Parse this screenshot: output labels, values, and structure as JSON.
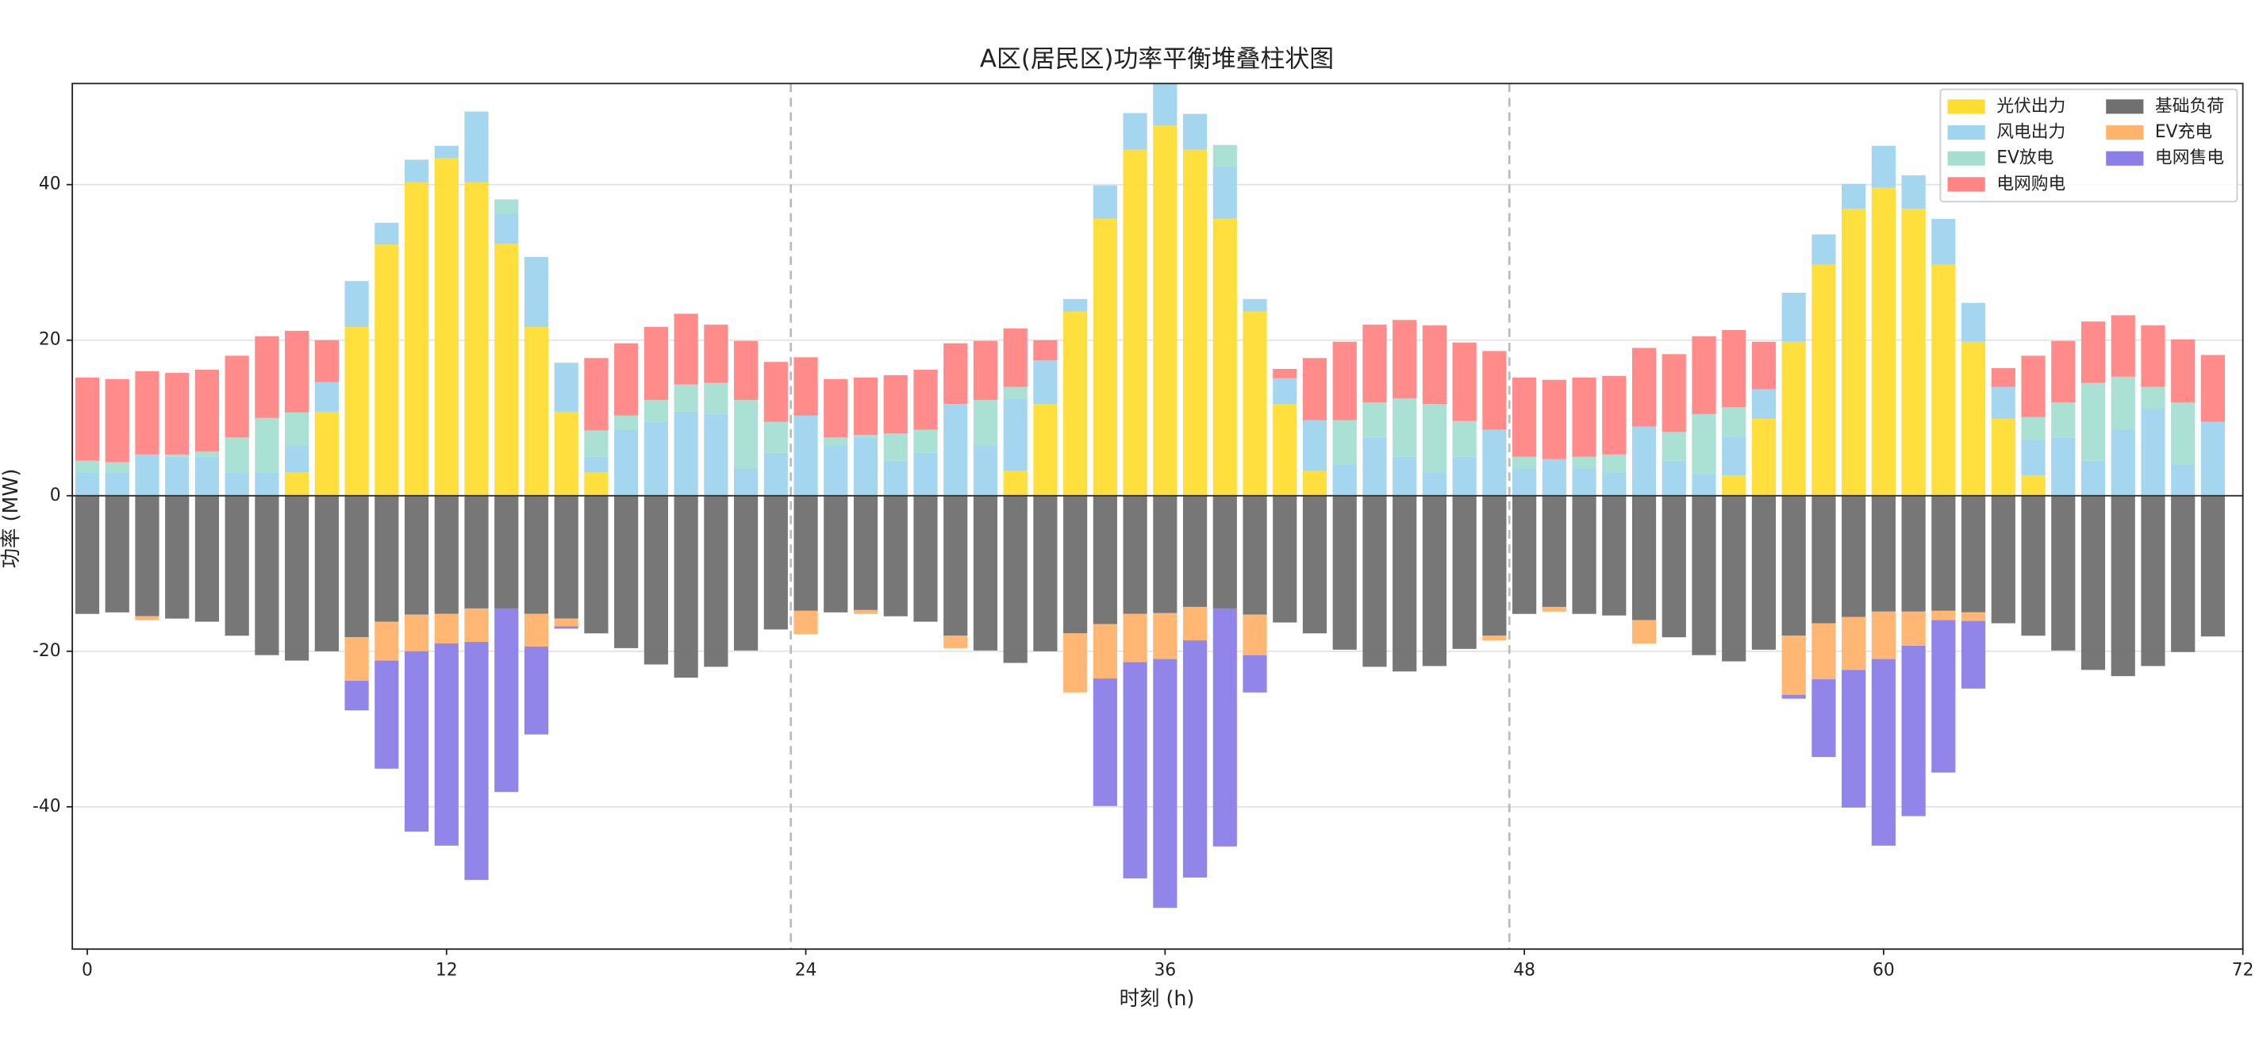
{
  "chart_data": {
    "type": "stacked_bar",
    "title": "A区(居民区)功率平衡堆叠柱状图",
    "x_label": "时刻 (h)",
    "y_label": "功率 (MW)",
    "x": [
      0,
      1,
      2,
      3,
      4,
      5,
      6,
      7,
      8,
      9,
      10,
      11,
      12,
      13,
      14,
      15,
      16,
      17,
      18,
      19,
      20,
      21,
      22,
      23,
      24,
      25,
      26,
      27,
      28,
      29,
      30,
      31,
      32,
      33,
      34,
      35,
      36,
      37,
      38,
      39,
      40,
      41,
      42,
      43,
      44,
      45,
      46,
      47,
      48,
      49,
      50,
      51,
      52,
      53,
      54,
      55,
      56,
      57,
      58,
      59,
      60,
      61,
      62,
      63,
      64,
      65,
      66,
      67,
      68,
      69,
      70,
      71
    ],
    "xlim": [
      -0.5,
      72
    ],
    "ylim": [
      -58.3,
      53
    ],
    "xticks": [
      0,
      12,
      24,
      36,
      48,
      60,
      72
    ],
    "yticks": [
      -40,
      -20,
      0,
      20,
      40
    ],
    "grid": true,
    "vlines": [
      23.5,
      47.5
    ],
    "legend": "upper right",
    "series": [
      {
        "name": "光伏出力",
        "color": "#fedd33",
        "values": [
          0,
          0,
          0,
          0,
          0,
          0,
          0,
          3.0,
          10.8,
          21.7,
          32.3,
          40.3,
          43.4,
          40.3,
          32.4,
          21.7,
          10.8,
          3.0,
          0,
          0,
          0,
          0,
          0,
          0,
          0,
          0,
          0,
          0,
          0,
          0,
          0,
          3.2,
          11.8,
          23.7,
          35.6,
          44.5,
          47.6,
          44.5,
          35.6,
          23.7,
          11.8,
          3.2,
          0,
          0,
          0,
          0,
          0,
          0,
          0,
          0,
          0,
          0,
          0,
          0,
          0,
          2.6,
          9.9,
          19.8,
          29.7,
          36.9,
          39.6,
          36.9,
          29.7,
          19.8,
          9.9,
          2.6,
          0,
          0,
          0,
          0,
          0,
          0
        ]
      },
      {
        "name": "风电出力",
        "color": "#9fd5ee",
        "values": [
          3.0,
          3.0,
          5.3,
          5.0,
          5.0,
          3.0,
          3.0,
          3.5,
          3.8,
          5.9,
          2.8,
          2.9,
          1.6,
          9.1,
          3.9,
          9.0,
          6.3,
          2.0,
          8.5,
          9.5,
          10.8,
          10.5,
          3.5,
          5.5,
          10.3,
          6.5,
          7.5,
          4.5,
          5.5,
          11.8,
          6.5,
          9.3,
          5.6,
          1.6,
          4.3,
          4.7,
          5.4,
          4.6,
          6.8,
          1.6,
          3.3,
          6.5,
          4.0,
          7.5,
          5.0,
          3.0,
          5.0,
          8.5,
          3.5,
          4.7,
          3.5,
          3.0,
          8.9,
          4.5,
          2.8,
          5.0,
          3.8,
          6.3,
          3.9,
          3.2,
          5.4,
          4.3,
          5.9,
          5.0,
          4.1,
          4.6,
          7.5,
          4.5,
          8.5,
          11.2,
          4.0,
          9.5
        ]
      },
      {
        "name": "EV放电",
        "color": "#a6dfd2",
        "values": [
          1.5,
          1.3,
          0,
          0.3,
          0.7,
          4.5,
          7.0,
          4.2,
          0,
          0,
          0,
          0,
          0,
          0,
          1.8,
          0,
          0,
          3.4,
          1.8,
          2.8,
          3.5,
          4.0,
          8.8,
          4.0,
          0,
          1.0,
          0.3,
          3.5,
          3.0,
          0,
          5.8,
          1.5,
          0,
          0,
          0,
          0,
          0,
          0,
          2.7,
          0,
          0,
          0,
          5.7,
          4.5,
          7.5,
          8.8,
          4.6,
          0,
          1.5,
          0,
          1.5,
          2.3,
          0,
          3.7,
          7.7,
          3.8,
          0,
          0,
          0,
          0,
          0,
          0,
          0,
          0,
          0,
          2.9,
          4.5,
          10.0,
          6.8,
          2.8,
          8.0,
          0
        ]
      },
      {
        "name": "电网购电",
        "color": "#ff8585",
        "values": [
          10.7,
          10.7,
          10.7,
          10.5,
          10.5,
          10.5,
          10.5,
          10.5,
          5.4,
          0,
          0,
          0,
          0,
          0,
          0,
          0,
          0,
          9.3,
          9.3,
          9.4,
          9.1,
          7.5,
          7.6,
          7.7,
          7.5,
          7.5,
          7.4,
          7.5,
          7.7,
          7.8,
          7.6,
          7.5,
          2.6,
          0,
          0,
          0,
          0,
          0,
          0,
          0,
          1.2,
          8.0,
          10.1,
          10.0,
          10.1,
          10.1,
          10.1,
          10.1,
          10.2,
          10.2,
          10.2,
          10.1,
          10.1,
          10.0,
          10.0,
          9.9,
          6.1,
          0,
          0,
          0,
          0,
          0,
          0,
          0,
          2.4,
          7.9,
          7.9,
          7.9,
          7.9,
          7.9,
          8.1,
          8.6
        ]
      },
      {
        "name": "基础负荷",
        "color": "#707070",
        "values": [
          -15.2,
          -15.0,
          -15.5,
          -15.8,
          -16.2,
          -18.0,
          -20.5,
          -21.2,
          -20.0,
          -18.2,
          -16.2,
          -15.3,
          -15.2,
          -14.5,
          -14.5,
          -15.2,
          -15.8,
          -17.7,
          -19.6,
          -21.7,
          -23.4,
          -22.0,
          -19.9,
          -17.2,
          -14.8,
          -15.0,
          -14.7,
          -15.5,
          -16.2,
          -18.0,
          -19.9,
          -21.5,
          -20.0,
          -17.7,
          -16.5,
          -15.2,
          -15.1,
          -14.3,
          -14.5,
          -15.3,
          -16.3,
          -17.7,
          -19.8,
          -22.0,
          -22.6,
          -21.9,
          -19.7,
          -18.0,
          -15.2,
          -14.3,
          -15.2,
          -15.4,
          -16.0,
          -18.2,
          -20.5,
          -21.3,
          -19.8,
          -18.0,
          -16.4,
          -15.6,
          -14.9,
          -14.9,
          -14.8,
          -15.0,
          -16.4,
          -18.0,
          -19.9,
          -22.4,
          -23.2,
          -21.9,
          -20.1,
          -18.1
        ]
      },
      {
        "name": "EV充电",
        "color": "#ffb36b",
        "values": [
          0,
          0,
          -0.5,
          0,
          0,
          0,
          0,
          0,
          0,
          -5.6,
          -5.0,
          -4.7,
          -3.8,
          -4.3,
          0,
          -4.2,
          -1.0,
          0,
          0,
          0,
          0,
          0,
          0,
          0,
          -3.0,
          0,
          -0.5,
          0,
          0,
          -1.6,
          0,
          0,
          0,
          -7.6,
          -7.0,
          -6.2,
          -5.9,
          -4.3,
          0,
          -5.2,
          0,
          0,
          0,
          0,
          0,
          0,
          0,
          -0.6,
          0,
          -0.6,
          0,
          0,
          -3.0,
          0,
          0,
          0,
          0,
          -7.6,
          -7.2,
          -6.8,
          -6.1,
          -4.4,
          -1.2,
          -1.1,
          0,
          0,
          0,
          0,
          0,
          0,
          0,
          0
        ]
      },
      {
        "name": "电网售电",
        "color": "#8c7ee9",
        "values": [
          0,
          0,
          0,
          0,
          0,
          0,
          0,
          0,
          0,
          -3.8,
          -13.9,
          -23.2,
          -26.0,
          -30.6,
          -23.6,
          -11.3,
          -0.3,
          0,
          0,
          0,
          0,
          0,
          0,
          0,
          0,
          0,
          0,
          0,
          0,
          0,
          0,
          0,
          0,
          0,
          -16.4,
          -27.8,
          -32.0,
          -30.5,
          -30.6,
          -4.8,
          0,
          0,
          0,
          0,
          0,
          0,
          0,
          0,
          0,
          0,
          0,
          0,
          0,
          0,
          0,
          0,
          0,
          -0.5,
          -10.0,
          -17.7,
          -24.0,
          -21.9,
          -19.6,
          -8.7,
          0,
          0,
          0,
          0,
          0,
          0,
          0,
          0
        ]
      }
    ]
  }
}
